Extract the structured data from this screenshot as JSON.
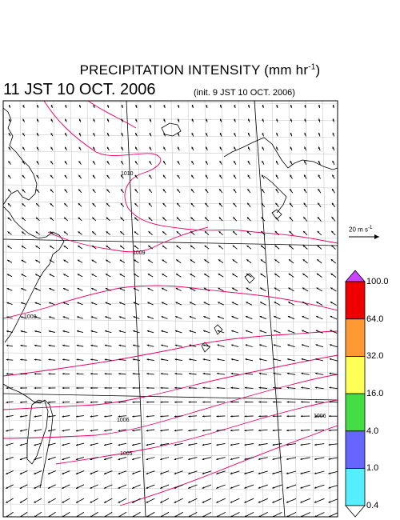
{
  "title": {
    "main": "PRECIPITATION INTENSITY (mm hr",
    "exponent": "-1",
    "close": ")"
  },
  "valid_time": "11 JST 10 OCT. 2006",
  "init_time": "(init. 9 JST 10 OCT. 2006)",
  "wind_reference": {
    "label": "20 m s",
    "exponent": "-1"
  },
  "colorbar": {
    "levels": [
      "0.4",
      "1.0",
      "4.0",
      "16.0",
      "32.0",
      "64.0",
      "100.0"
    ],
    "colors": [
      "#55eeff",
      "#6666ff",
      "#44dd44",
      "#ffff55",
      "#ff9933",
      "#ee0000"
    ],
    "over_color": "#cc44ff",
    "under_color": "#ffffff"
  },
  "contours": {
    "color": "#ee0066",
    "labels": [
      "1010",
      "1009",
      "1008",
      "1006",
      "1005",
      "1006"
    ]
  }
}
